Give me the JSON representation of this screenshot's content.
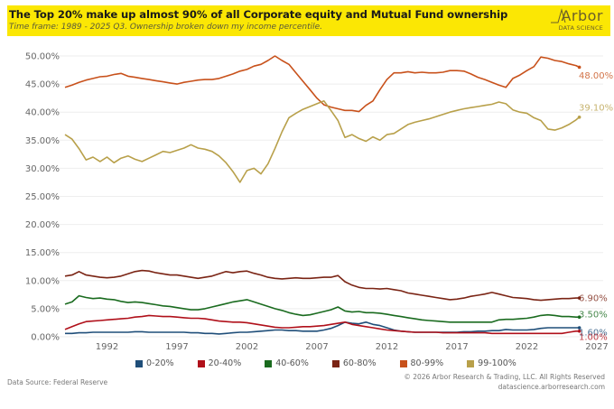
{
  "header": {
    "title": "The Top 20% make up almost 90% of all Corporate equity and Mutual Fund ownership",
    "subtitle": "Time frame: 1989 - 2025 Q3. Ownership broken down my income percentile.",
    "logo_main": "Arbor",
    "logo_sub": "DATA SCIENCE"
  },
  "footer": {
    "source": "Data Source: Federal Reserve",
    "copyright": "© 2026 Arbor Research & Trading, LLC. All Rights Reserved",
    "url": "datascience.arborresearch.com"
  },
  "chart_data": {
    "type": "line",
    "title": "The Top 20% make up almost 90% of all Corporate equity and Mutual Fund ownership",
    "subtitle": "Time frame: 1989 - 2025 Q3. Ownership broken down my income percentile.",
    "xlabel": "",
    "ylabel": "",
    "xlim": [
      1988.5,
      2027.5
    ],
    "ylim": [
      0,
      50
    ],
    "x_ticks": [
      1992,
      1997,
      2002,
      2007,
      2012,
      2017,
      2022,
      2027
    ],
    "y_ticks": [
      {
        "value": 0,
        "label": "0.00%"
      },
      {
        "value": 5,
        "label": "5.00%"
      },
      {
        "value": 10,
        "label": "10.00%"
      },
      {
        "value": 15,
        "label": "15.00%"
      },
      {
        "value": 20,
        "label": "20.00%"
      },
      {
        "value": 25,
        "label": "25.00%"
      },
      {
        "value": 30,
        "label": "30.00%"
      },
      {
        "value": 35,
        "label": "35.00%"
      },
      {
        "value": 40,
        "label": "40.00%"
      },
      {
        "value": 45,
        "label": "45.00%"
      },
      {
        "value": 50,
        "label": "50.00%"
      }
    ],
    "grid": true,
    "legend_position": "bottom",
    "x": [
      1989,
      1989.5,
      1990,
      1990.5,
      1991,
      1991.5,
      1992,
      1992.5,
      1993,
      1993.5,
      1994,
      1994.5,
      1995,
      1995.5,
      1996,
      1996.5,
      1997,
      1997.5,
      1998,
      1998.5,
      1999,
      1999.5,
      2000,
      2000.5,
      2001,
      2001.5,
      2002,
      2002.5,
      2003,
      2003.5,
      2004,
      2004.5,
      2005,
      2005.5,
      2006,
      2006.5,
      2007,
      2007.5,
      2008,
      2008.5,
      2009,
      2009.5,
      2010,
      2010.5,
      2011,
      2011.5,
      2012,
      2012.5,
      2013,
      2013.5,
      2014,
      2014.5,
      2015,
      2015.5,
      2016,
      2016.5,
      2017,
      2017.5,
      2018,
      2018.5,
      2019,
      2019.5,
      2020,
      2020.5,
      2021,
      2021.5,
      2022,
      2022.5,
      2023,
      2023.5,
      2024,
      2024.5,
      2025,
      2025.5,
      2025.75
    ],
    "series": [
      {
        "name": "0-20%",
        "color": "#1f4e79",
        "end_label": "1.60%",
        "values": [
          0.6,
          0.6,
          0.7,
          0.7,
          0.8,
          0.8,
          0.8,
          0.8,
          0.8,
          0.8,
          0.9,
          0.9,
          0.8,
          0.8,
          0.8,
          0.8,
          0.8,
          0.8,
          0.7,
          0.7,
          0.6,
          0.6,
          0.5,
          0.6,
          0.7,
          0.8,
          0.8,
          0.9,
          1.0,
          1.1,
          1.2,
          1.2,
          1.1,
          1.1,
          1.0,
          1.0,
          1.0,
          1.2,
          1.5,
          2.0,
          2.6,
          2.4,
          2.3,
          2.6,
          2.2,
          2.0,
          1.6,
          1.2,
          1.0,
          0.9,
          0.8,
          0.8,
          0.8,
          0.8,
          0.8,
          0.8,
          0.8,
          0.9,
          0.9,
          1.0,
          1.0,
          1.1,
          1.1,
          1.3,
          1.2,
          1.2,
          1.2,
          1.3,
          1.5,
          1.6,
          1.6,
          1.6,
          1.6,
          1.6,
          1.6
        ]
      },
      {
        "name": "20-40%",
        "color": "#b0101a",
        "end_label": "1.00%",
        "values": [
          1.3,
          1.8,
          2.3,
          2.7,
          2.8,
          2.9,
          3.0,
          3.1,
          3.2,
          3.3,
          3.5,
          3.6,
          3.8,
          3.7,
          3.6,
          3.6,
          3.5,
          3.4,
          3.3,
          3.3,
          3.2,
          3.0,
          2.8,
          2.7,
          2.6,
          2.6,
          2.5,
          2.3,
          2.1,
          1.9,
          1.7,
          1.6,
          1.6,
          1.7,
          1.8,
          1.8,
          1.9,
          2.0,
          2.2,
          2.4,
          2.6,
          2.2,
          2.0,
          1.8,
          1.6,
          1.4,
          1.2,
          1.1,
          1.0,
          0.9,
          0.8,
          0.8,
          0.8,
          0.8,
          0.7,
          0.7,
          0.7,
          0.7,
          0.7,
          0.7,
          0.7,
          0.6,
          0.6,
          0.6,
          0.6,
          0.6,
          0.6,
          0.6,
          0.6,
          0.6,
          0.6,
          0.6,
          0.8,
          1.0,
          1.0
        ]
      },
      {
        "name": "40-60%",
        "color": "#1a6b1f",
        "end_label": "3.50%",
        "values": [
          5.8,
          6.2,
          7.3,
          7.0,
          6.8,
          6.9,
          6.7,
          6.6,
          6.3,
          6.1,
          6.2,
          6.1,
          5.9,
          5.7,
          5.5,
          5.4,
          5.2,
          5.0,
          4.8,
          4.8,
          5.0,
          5.3,
          5.6,
          5.9,
          6.2,
          6.4,
          6.6,
          6.2,
          5.8,
          5.4,
          5.0,
          4.7,
          4.3,
          4.0,
          3.8,
          3.9,
          4.2,
          4.5,
          4.8,
          5.3,
          4.6,
          4.4,
          4.5,
          4.3,
          4.3,
          4.2,
          4.0,
          3.8,
          3.6,
          3.4,
          3.2,
          3.0,
          2.9,
          2.8,
          2.7,
          2.6,
          2.6,
          2.6,
          2.6,
          2.6,
          2.6,
          2.6,
          3.0,
          3.1,
          3.1,
          3.2,
          3.3,
          3.5,
          3.8,
          3.9,
          3.8,
          3.6,
          3.6,
          3.5,
          3.5
        ]
      },
      {
        "name": "60-80%",
        "color": "#7a2414",
        "end_label": "6.90%",
        "values": [
          10.8,
          11.0,
          11.6,
          11.0,
          10.8,
          10.6,
          10.5,
          10.6,
          10.8,
          11.2,
          11.6,
          11.8,
          11.7,
          11.4,
          11.2,
          11.0,
          11.0,
          10.8,
          10.6,
          10.4,
          10.6,
          10.8,
          11.2,
          11.6,
          11.4,
          11.6,
          11.7,
          11.3,
          11.0,
          10.6,
          10.4,
          10.3,
          10.4,
          10.5,
          10.4,
          10.4,
          10.5,
          10.6,
          10.6,
          10.9,
          9.8,
          9.2,
          8.8,
          8.6,
          8.6,
          8.5,
          8.6,
          8.4,
          8.2,
          7.8,
          7.6,
          7.4,
          7.2,
          7.0,
          6.8,
          6.6,
          6.7,
          6.9,
          7.2,
          7.4,
          7.6,
          7.9,
          7.6,
          7.3,
          7.0,
          6.9,
          6.8,
          6.6,
          6.5,
          6.6,
          6.7,
          6.8,
          6.8,
          6.9,
          6.9
        ]
      },
      {
        "name": "80-99%",
        "color": "#c8511b",
        "end_label": "48.00%",
        "values": [
          44.4,
          44.8,
          45.3,
          45.7,
          46.0,
          46.3,
          46.4,
          46.7,
          46.9,
          46.4,
          46.2,
          46.0,
          45.8,
          45.6,
          45.4,
          45.2,
          45.0,
          45.3,
          45.5,
          45.7,
          45.8,
          45.8,
          46.0,
          46.4,
          46.8,
          47.3,
          47.6,
          48.2,
          48.5,
          49.2,
          50.0,
          49.2,
          48.5,
          47.0,
          45.5,
          44.0,
          42.5,
          41.3,
          40.9,
          40.6,
          40.3,
          40.3,
          40.1,
          41.2,
          42.0,
          44.0,
          45.8,
          47.0,
          47.0,
          47.2,
          47.0,
          47.1,
          47.0,
          47.0,
          47.1,
          47.4,
          47.4,
          47.3,
          46.8,
          46.2,
          45.8,
          45.3,
          44.8,
          44.4,
          46.0,
          46.6,
          47.4,
          48.1,
          49.8,
          49.6,
          49.2,
          49.0,
          48.6,
          48.3,
          48.0
        ]
      },
      {
        "name": "99-100%",
        "color": "#b8a04a",
        "end_label": "39.10%",
        "values": [
          36.0,
          35.2,
          33.5,
          31.5,
          32.0,
          31.2,
          32.0,
          31.0,
          31.8,
          32.2,
          31.6,
          31.2,
          31.8,
          32.4,
          33.0,
          32.8,
          33.2,
          33.6,
          34.2,
          33.6,
          33.4,
          33.0,
          32.2,
          31.0,
          29.4,
          27.5,
          29.6,
          30.0,
          29.0,
          30.8,
          33.5,
          36.5,
          39.0,
          39.8,
          40.5,
          41.0,
          41.5,
          42.0,
          40.3,
          38.5,
          35.5,
          36.0,
          35.3,
          34.8,
          35.6,
          35.0,
          36.0,
          36.2,
          37.0,
          37.8,
          38.2,
          38.5,
          38.8,
          39.2,
          39.6,
          40.0,
          40.3,
          40.6,
          40.8,
          41.0,
          41.2,
          41.4,
          41.8,
          41.5,
          40.4,
          40.0,
          39.8,
          39.0,
          38.5,
          37.0,
          36.8,
          37.2,
          37.8,
          38.6,
          39.1
        ]
      }
    ]
  }
}
